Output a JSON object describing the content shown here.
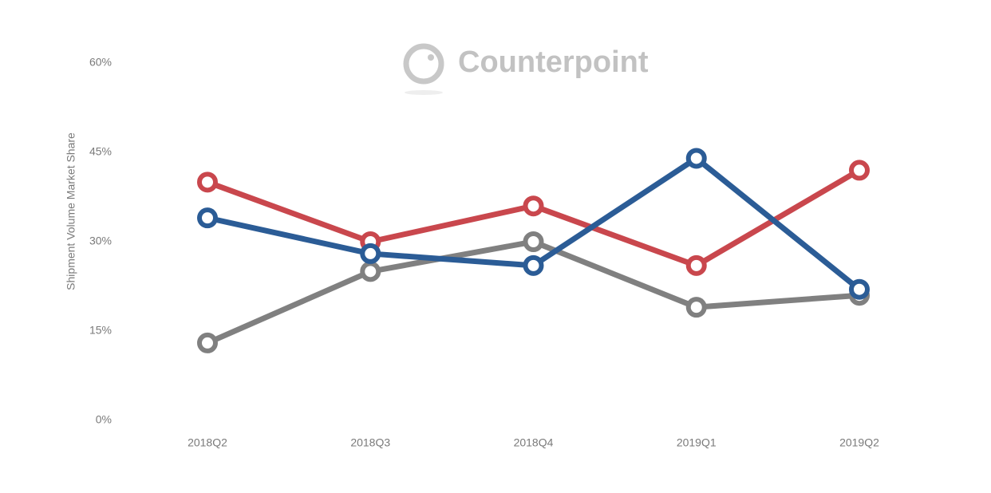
{
  "chart_data": {
    "type": "line",
    "watermark": "Counterpoint",
    "y_label": "Shipment Volume Market Share",
    "categories": [
      "2018Q2",
      "2018Q3",
      "2018Q4",
      "2019Q1",
      "2019Q2"
    ],
    "series": [
      {
        "color": "#c9474d",
        "values": [
          40,
          30,
          36,
          26,
          42
        ]
      },
      {
        "color": "#808080",
        "values": [
          13,
          25,
          30,
          19,
          21
        ]
      },
      {
        "color": "#2b5c96",
        "values": [
          34,
          28,
          26,
          44,
          22
        ]
      }
    ],
    "ylim": [
      0,
      60
    ],
    "yticks": [
      {
        "value": 0,
        "label": "0%"
      },
      {
        "value": 15,
        "label": "15%"
      },
      {
        "value": 30,
        "label": "30%"
      },
      {
        "value": 45,
        "label": "45%"
      },
      {
        "value": 60,
        "label": "60%"
      }
    ],
    "grid": false
  }
}
